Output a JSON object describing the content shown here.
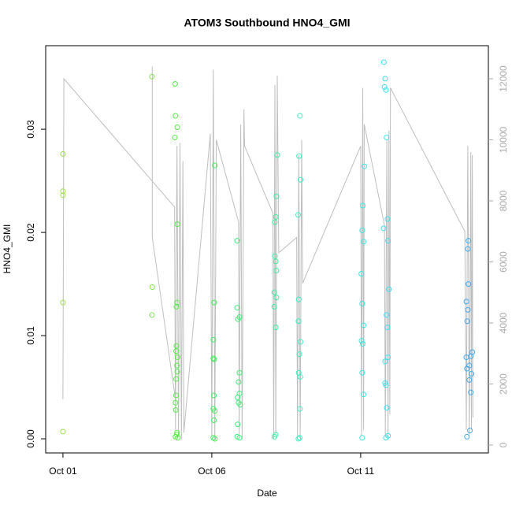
{
  "chart_data": {
    "type": "scatter",
    "title": "ATOM3 Southbound HNO4_GMI",
    "x_label": "Date",
    "y_label": "HNO4_GMI",
    "xlim": [
      -0.58,
      14.29
    ],
    "xticks": [
      {
        "value": 0,
        "label": "Oct 01"
      },
      {
        "value": 5,
        "label": "Oct 06"
      },
      {
        "value": 10,
        "label": "Oct 11"
      }
    ],
    "ylim": [
      -0.00137,
      0.0381
    ],
    "yticks": [
      {
        "value": 0,
        "label": "0.00"
      },
      0.01,
      0.02,
      0.03
    ],
    "y2lim": [
      -258,
      13084
    ],
    "y2ticks": [
      0,
      2000,
      4000,
      6000,
      8000,
      10000,
      12000
    ],
    "y2_color": "#aaaaaa",
    "series": [
      {
        "type": "line",
        "axis": "y2",
        "color": "#bebebe",
        "x": [
          0,
          0.03,
          3.75,
          3.78,
          3.83,
          3.88,
          3.93,
          3.98,
          4.03,
          4.06,
          null,
          3.0,
          3.0,
          3.78,
          null,
          4.06,
          4.95,
          5.0,
          5.05,
          5.1,
          5.15,
          5.9,
          5.92,
          5.97,
          6.02,
          6.08,
          6.1,
          7.05,
          7.08,
          7.12,
          7.15,
          7.2,
          7.25,
          7.85,
          7.88,
          7.92,
          7.97,
          8.02,
          8.05,
          10.0,
          10.03,
          10.07,
          10.1,
          10.12,
          10.8,
          10.83,
          10.88,
          10.92,
          10.95,
          10.98,
          11.0,
          13.5,
          13.55,
          13.6,
          13.65,
          13.7,
          13.72,
          13.75,
          13.77
        ],
        "values": [
          1500,
          12000,
          7800,
          500,
          9800,
          300,
          9900,
          200,
          9300,
          400,
          null,
          12400,
          6800,
          1500,
          null,
          400,
          10200,
          300,
          12300,
          200,
          10000,
          7300,
          300,
          10500,
          200,
          11000,
          9800,
          7600,
          200,
          11800,
          300,
          12100,
          6300,
          6800,
          300,
          9500,
          200,
          10000,
          5300,
          9800,
          300,
          11700,
          500,
          10500,
          7200,
          300,
          10000,
          200,
          10300,
          1000,
          11700,
          7000,
          500,
          9800,
          300,
          9600,
          500,
          9500,
          900
        ]
      },
      {
        "color": "#9be34a",
        "x": [
          0,
          0,
          0,
          0,
          0
        ],
        "values": [
          0.0276,
          0.024,
          0.0236,
          0.0132,
          0.0007
        ]
      },
      {
        "color": "#7de84a",
        "x": [
          2.99,
          3.0,
          2.99
        ],
        "values": [
          0.0351,
          0.0147,
          0.012
        ]
      },
      {
        "color": "#55ee44",
        "x": [
          3.77,
          3.78,
          3.84,
          3.76,
          3.84,
          3.83,
          3.81,
          3.81,
          3.8,
          3.85,
          3.83,
          3.84,
          3.8,
          3.8,
          3.78,
          3.79,
          3.83,
          3.82,
          3.78,
          3.86
        ],
        "values": [
          0.0344,
          0.0313,
          0.0302,
          0.0292,
          0.0208,
          0.0132,
          0.0128,
          0.009,
          0.0085,
          0.0079,
          0.0071,
          0.0065,
          0.0058,
          0.0042,
          0.0035,
          0.0028,
          0.0006,
          0.0004,
          0.0002,
          0.0001
        ]
      },
      {
        "color": "#3cf05a",
        "x": [
          5.1,
          5.08,
          5.05,
          5.05,
          5.08,
          5.07,
          5.05,
          5.1,
          5.07,
          5.05,
          5.1
        ],
        "values": [
          0.0265,
          0.0132,
          0.0096,
          0.0078,
          0.0077,
          0.0042,
          0.0029,
          0.0027,
          0.0018,
          0.0001,
          0.0
        ]
      },
      {
        "color": "#3cf078",
        "x": [
          5.85,
          5.85,
          5.93,
          5.88,
          5.93,
          5.9,
          5.93,
          5.87,
          5.9,
          5.95,
          5.87,
          5.85,
          5.93
        ],
        "values": [
          0.0192,
          0.0127,
          0.0118,
          0.0116,
          0.0064,
          0.0055,
          0.0044,
          0.004,
          0.0035,
          0.0033,
          0.0014,
          0.0002,
          0.0001
        ]
      },
      {
        "color": "#3cf0a0",
        "x": [
          7.2,
          7.17,
          7.15,
          7.12,
          7.12,
          7.15,
          7.17,
          7.1,
          7.17,
          7.1,
          7.15,
          7.15,
          7.1
        ],
        "values": [
          0.0275,
          0.0235,
          0.0215,
          0.021,
          0.0177,
          0.0172,
          0.0163,
          0.0142,
          0.0137,
          0.0128,
          0.0108,
          0.0004,
          0.0002
        ]
      },
      {
        "color": "#3cf0c0",
        "x": [
          7.96,
          7.93,
          7.98,
          7.9,
          7.92,
          7.91,
          7.98,
          7.94,
          7.92,
          7.97,
          7.96,
          7.95,
          7.91
        ],
        "values": [
          0.0313,
          0.0274,
          0.0251,
          0.0217,
          0.0135,
          0.0114,
          0.0094,
          0.0082,
          0.0064,
          0.006,
          0.0029,
          0.0001,
          0.0
        ]
      },
      {
        "color": "#3ce8e0",
        "x": [
          10.12,
          10.07,
          10.05,
          10.1,
          10.02,
          10.05,
          10.1,
          10.03,
          10.07,
          10.05,
          10.1,
          10.05
        ],
        "values": [
          0.0264,
          0.0226,
          0.0202,
          0.0191,
          0.016,
          0.0131,
          0.011,
          0.0095,
          0.0092,
          0.0064,
          0.0043,
          0.0001
        ]
      },
      {
        "color": "#3ce0f0",
        "x": [
          10.78,
          10.82,
          10.8,
          10.85,
          10.87,
          10.9,
          10.77,
          10.92,
          10.95,
          10.87,
          10.9,
          10.92,
          10.82,
          10.82,
          10.85,
          10.88,
          10.92,
          10.85
        ],
        "values": [
          0.0365,
          0.0349,
          0.0341,
          0.0338,
          0.0292,
          0.0213,
          0.0204,
          0.0192,
          0.0145,
          0.012,
          0.0108,
          0.0079,
          0.0075,
          0.0054,
          0.0052,
          0.003,
          0.0003,
          0.0001
        ]
      },
      {
        "color": "#3caaf0",
        "x": [
          13.62,
          13.6,
          13.62,
          13.55,
          13.6,
          13.58,
          13.75,
          13.7,
          13.55,
          13.65,
          13.57,
          13.72,
          13.65,
          13.7,
          13.67,
          13.57
        ],
        "values": [
          0.0192,
          0.0184,
          0.015,
          0.0133,
          0.0125,
          0.0114,
          0.0084,
          0.008,
          0.0079,
          0.0071,
          0.0068,
          0.0063,
          0.0057,
          0.0045,
          0.0008,
          0.0002
        ]
      }
    ]
  }
}
